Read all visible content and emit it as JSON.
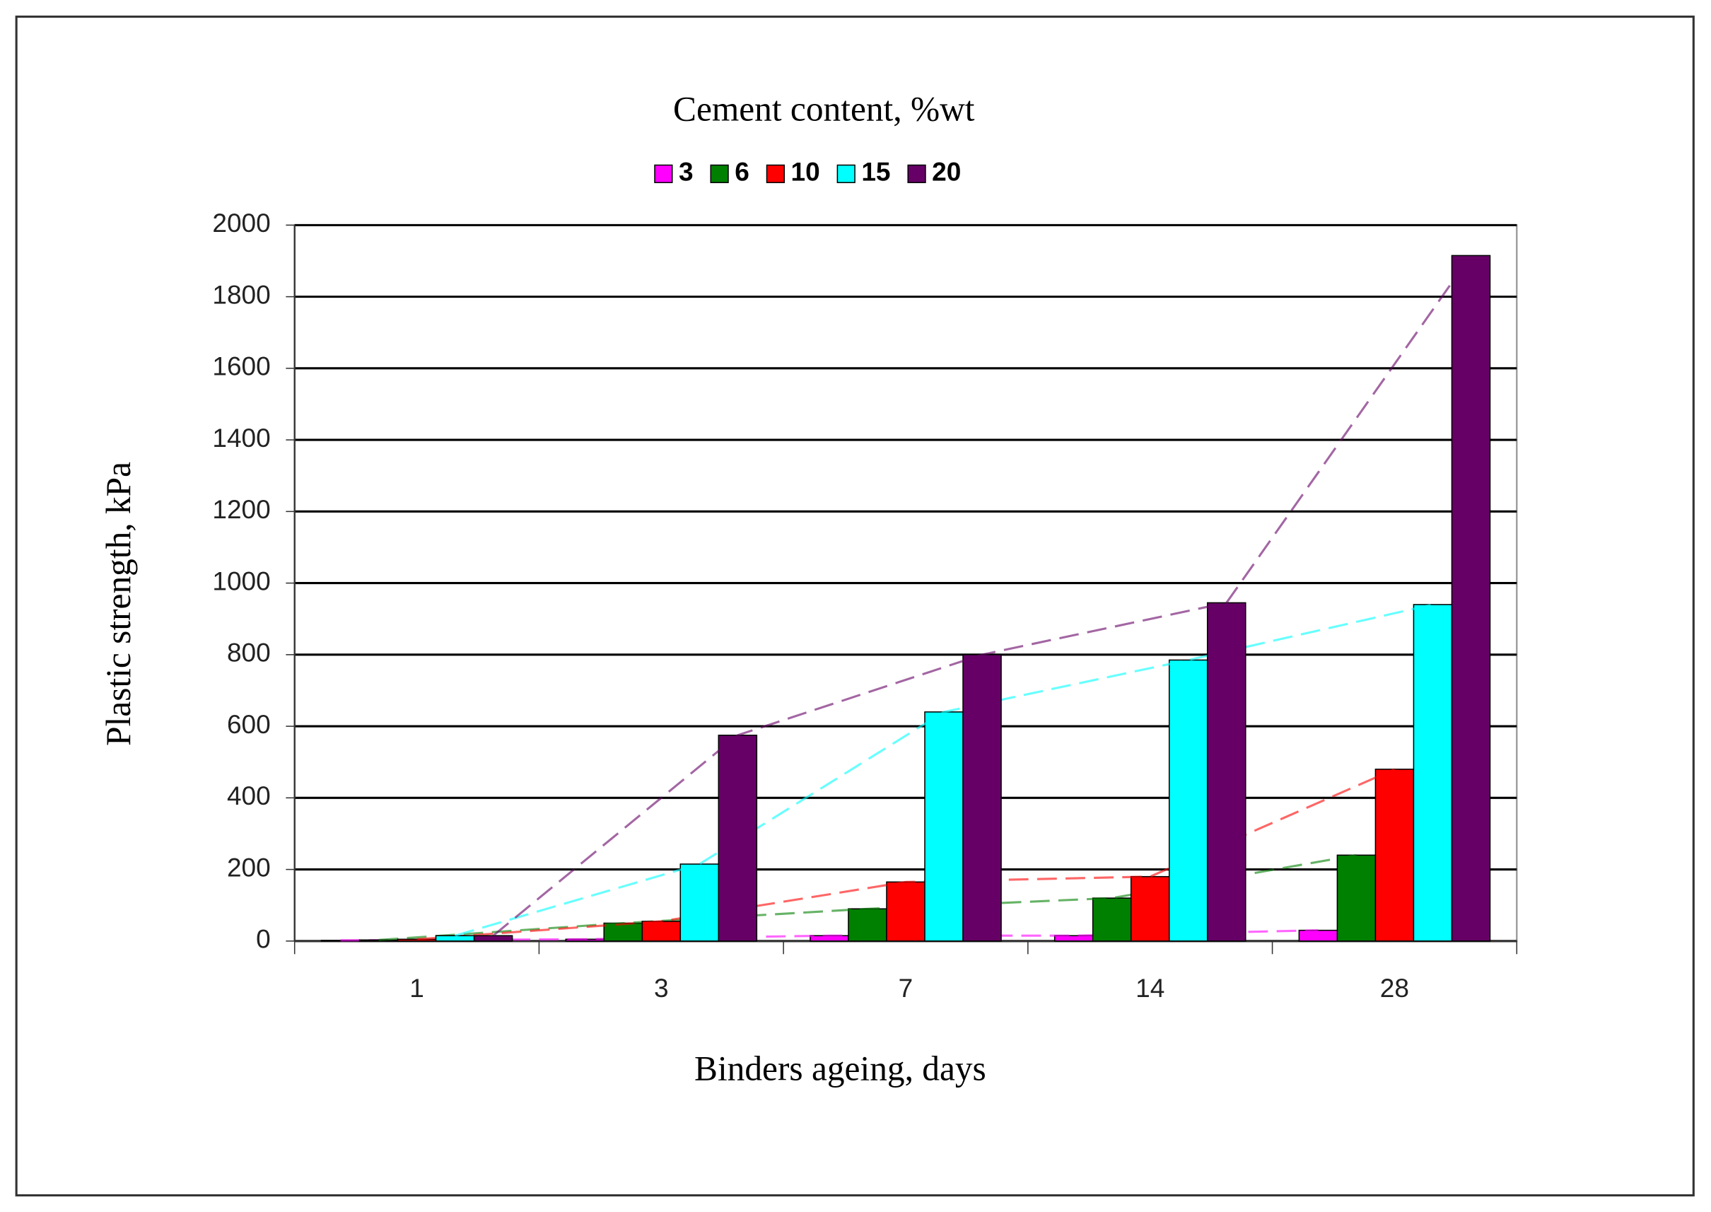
{
  "chart_data": {
    "type": "bar",
    "title": "Cement content, %wt",
    "x_label": "Binders ageing, days",
    "y_label": "Plastic strength, kPa",
    "categories": [
      "1",
      "3",
      "7",
      "14",
      "28"
    ],
    "series": [
      {
        "name": "3",
        "color": "#ff00ff",
        "values": [
          2,
          5,
          15,
          15,
          30
        ]
      },
      {
        "name": "6",
        "color": "#008000",
        "values": [
          3,
          50,
          90,
          120,
          240
        ]
      },
      {
        "name": "10",
        "color": "#ff0000",
        "values": [
          5,
          55,
          165,
          180,
          480
        ]
      },
      {
        "name": "15",
        "color": "#00ffff",
        "values": [
          15,
          215,
          640,
          785,
          940
        ]
      },
      {
        "name": "20",
        "color": "#660066",
        "values": [
          15,
          575,
          800,
          945,
          1915
        ]
      }
    ],
    "ylim": [
      0,
      2000
    ],
    "yticks": [
      0,
      200,
      400,
      600,
      800,
      1000,
      1200,
      1400,
      1600,
      1800,
      2000
    ],
    "grid": true,
    "legend": "top"
  }
}
